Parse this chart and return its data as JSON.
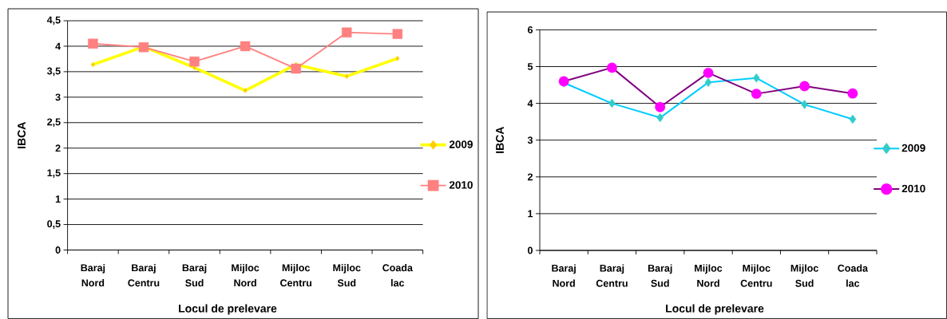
{
  "chart_data": [
    {
      "type": "line",
      "xlabel": "Locul de prelevare",
      "ylabel": "IBCA",
      "categories": [
        "Baraj Nord",
        "Baraj Centru",
        "Baraj Sud",
        "Mijloc Nord",
        "Mijloc Centru",
        "Mijloc Sud",
        "Coada lac"
      ],
      "series": [
        {
          "name": "2009",
          "color": "#ffff00",
          "colors": [
            "#ffcc00",
            "#ffcc00",
            "#ffcc00",
            "#ffcc00",
            "#ffcc00",
            "#ffcc00",
            "#ffcc00"
          ],
          "marker": "diamond",
          "values": [
            3.64,
            3.99,
            3.58,
            3.13,
            3.64,
            3.41,
            3.76
          ]
        },
        {
          "name": "2010",
          "color": "#ff8080",
          "marker": "square",
          "values": [
            4.05,
            3.98,
            3.7,
            4.0,
            3.56,
            4.27,
            4.24
          ]
        }
      ],
      "ylim": [
        0,
        4.5
      ],
      "yticks": [
        0,
        {
          "value": 0.5,
          "label": "0,5"
        },
        1,
        {
          "value": 1.5,
          "label": "1,5"
        },
        2,
        {
          "value": 2.5,
          "label": "2,5"
        },
        3,
        {
          "value": 3.5,
          "label": "3,5"
        },
        4,
        {
          "value": 4.5,
          "label": "4,5"
        }
      ],
      "grid": "y",
      "legend": "right"
    },
    {
      "type": "line",
      "xlabel": "Locul de prelevare",
      "ylabel": "IBCA",
      "categories": [
        "Baraj Nord",
        "Baraj Centru",
        "Baraj Sud",
        "Mijloc Nord",
        "Mijloc Centru",
        "Mijloc Sud",
        "Coada lac"
      ],
      "series": [
        {
          "name": "2009",
          "color": "#00ccff",
          "colors": [
            "#33cccc",
            "#33cccc",
            "#33cccc",
            "#33cccc",
            "#33cccc",
            "#33cccc",
            "#33cccc"
          ],
          "marker": "diamond",
          "values": [
            4.56,
            4.0,
            3.61,
            4.57,
            4.69,
            3.97,
            3.57
          ]
        },
        {
          "name": "2010",
          "color": "#800080",
          "colors": [
            "#ff00ff",
            "#ff00ff",
            "#ff00ff",
            "#ff00ff",
            "#ff00ff",
            "#ff00ff",
            "#ff00ff"
          ],
          "marker": "circle",
          "values": [
            4.6,
            4.97,
            3.9,
            4.83,
            4.26,
            4.47,
            4.27
          ]
        }
      ],
      "ylim": [
        0,
        6
      ],
      "yticks": [
        0,
        1,
        2,
        3,
        4,
        5,
        6
      ],
      "grid": "y",
      "legend": "right"
    }
  ]
}
